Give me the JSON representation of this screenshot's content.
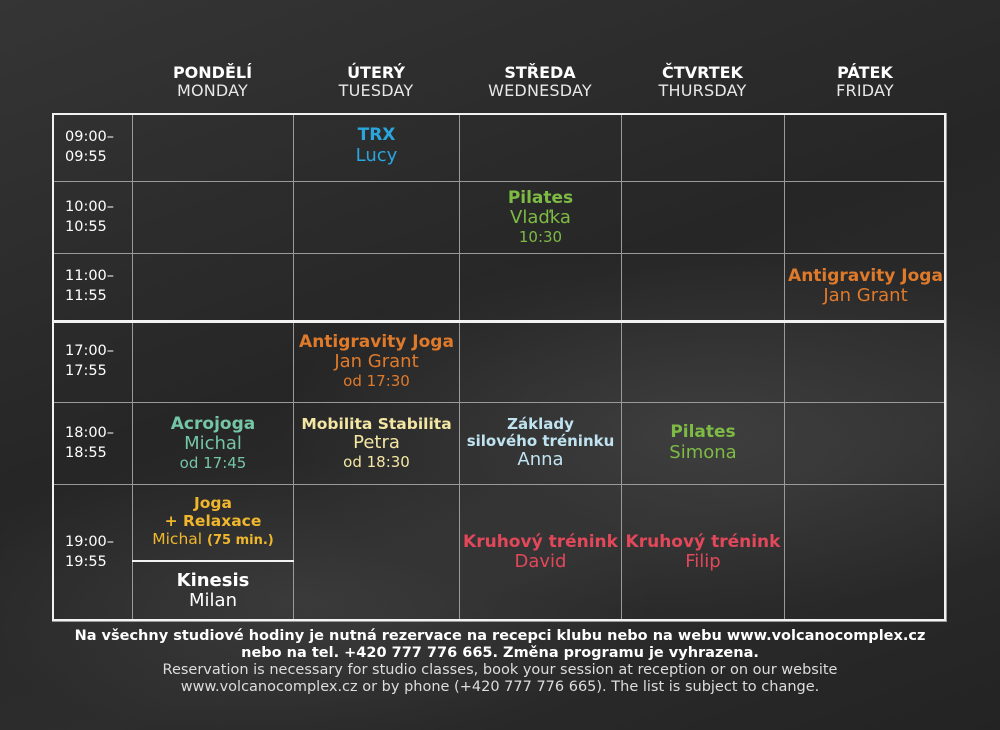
{
  "days": [
    {
      "cz": "PONDĚLÍ",
      "en": "MONDAY"
    },
    {
      "cz": "ÚTERÝ",
      "en": "TUESDAY"
    },
    {
      "cz": "STŘEDA",
      "en": "WEDNESDAY"
    },
    {
      "cz": "ČTVRTEK",
      "en": "THURSDAY"
    },
    {
      "cz": "PÁTEK",
      "en": "FRIDAY"
    }
  ],
  "times": [
    {
      "from": "09:00–",
      "to": "09:55"
    },
    {
      "from": "10:00–",
      "to": "10:55"
    },
    {
      "from": "11:00–",
      "to": "11:55"
    },
    {
      "from": "17:00–",
      "to": "17:55"
    },
    {
      "from": "18:00–",
      "to": "18:55"
    },
    {
      "from": "19:00–",
      "to": "19:55"
    }
  ],
  "classes": {
    "trx": {
      "title": "TRX",
      "instructor": "Lucy",
      "color": "#2aa6df"
    },
    "pilates_wed": {
      "title": "Pilates",
      "instructor": "Vlaďka",
      "note": "10:30",
      "color": "#7dbb45"
    },
    "antigravity_fri": {
      "title": "Antigravity Joga",
      "instructor": "Jan Grant",
      "color": "#e07a2b"
    },
    "antigravity_tue": {
      "title": "Antigravity Joga",
      "instructor": "Jan Grant",
      "note": "od 17:30",
      "color": "#e07a2b"
    },
    "acrojoga": {
      "title": "Acrojoga",
      "instructor": "Michal",
      "note": "od 17:45",
      "color": "#74c6a6"
    },
    "mobilita": {
      "title": "Mobilita Stabilita",
      "instructor": "Petra",
      "note": "od 18:30",
      "color": "#f4e6a3"
    },
    "zaklady": {
      "title1": "Základy",
      "title2": "silového tréninku",
      "instructor": "Anna",
      "color": "#bfe3f0"
    },
    "pilates_thu": {
      "title": "Pilates",
      "instructor": "Simona",
      "color": "#7dbb45"
    },
    "joga_relax": {
      "title1": "Joga",
      "title2": "+ Relaxace",
      "instructor": "Michal",
      "note": "(75 min.)",
      "color": "#f0b72d"
    },
    "kinesis": {
      "title": "Kinesis",
      "instructor": "Milan",
      "color": "#ffffff"
    },
    "kruhovy_wed": {
      "title": "Kruhový trénink",
      "instructor": "David",
      "color": "#e2475a"
    },
    "kruhovy_thu": {
      "title": "Kruhový trénink",
      "instructor": "Filip",
      "color": "#e2475a"
    }
  },
  "footer": {
    "cz_line1": "Na všechny studiové hodiny je nutná rezervace na recepci klubu nebo na webu www.volcanocomplex.cz",
    "cz_line2": "nebo na tel. +420 777 776 665. Změna programu je vyhrazena.",
    "en_line1": "Reservation is necessary for studio classes, book your session at reception or on our website",
    "en_line2": "www.volcanocomplex.cz or by phone (+420 777 776 665). The list is subject to change."
  }
}
